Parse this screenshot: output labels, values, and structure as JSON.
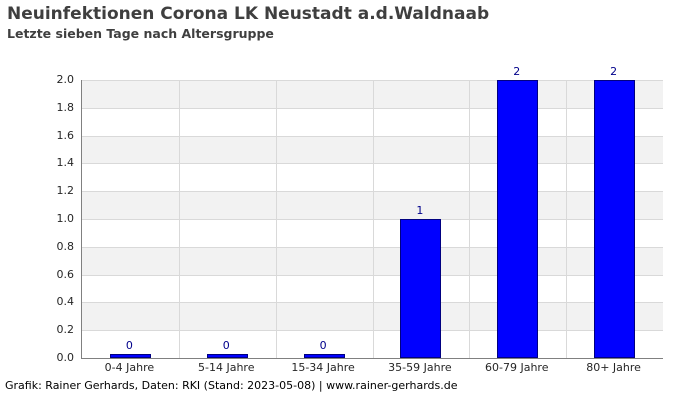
{
  "chart_data": {
    "type": "bar",
    "title": "Neuinfektionen Corona LK Neustadt a.d.Waldnaab",
    "subtitle": "Letzte sieben Tage nach Altersgruppe",
    "footer": "Grafik: Rainer Gerhards, Daten: RKI (Stand: 2023-05-08) | www.rainer-gerhards.de",
    "categories": [
      "0-4 Jahre",
      "5-14 Jahre",
      "15-34 Jahre",
      "35-59 Jahre",
      "60-79 Jahre",
      "80+ Jahre"
    ],
    "values": [
      0,
      0,
      0,
      1,
      2,
      2
    ],
    "value_labels": [
      "0",
      "0",
      "0",
      "1",
      "2",
      "2"
    ],
    "xlabel": "",
    "ylabel": "",
    "ylim": [
      0,
      2.0
    ],
    "ytick_step": 0.2,
    "ytick_labels": [
      "0.0",
      "0.2",
      "0.4",
      "0.6",
      "0.8",
      "1.0",
      "1.2",
      "1.4",
      "1.6",
      "1.8",
      "2.0"
    ],
    "grid": true,
    "legend": "none",
    "colors": {
      "bar_fill": "#0000ff",
      "bar_edge": "#000080",
      "value_label": "#00008b",
      "band": "#f2f2f2",
      "gridline": "#d9d9d9",
      "axis": "#808080",
      "tick_label": "#262626",
      "heading": "#3f3f3f",
      "footer_text": "#000000"
    }
  }
}
